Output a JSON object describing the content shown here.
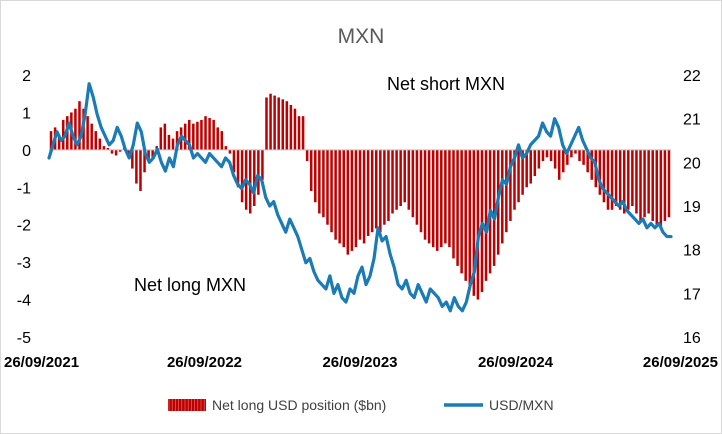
{
  "chart_data": {
    "type": "bar+line",
    "title": "MXN",
    "x_tick_labels": [
      "26/09/2021",
      "26/09/2022",
      "26/09/2023",
      "26/09/2024",
      "26/09/2025"
    ],
    "y_left": {
      "ticks": [
        "2",
        "1",
        "0",
        "-1",
        "-2",
        "-3",
        "-4",
        "-5"
      ],
      "range": [
        -5,
        2
      ]
    },
    "y_right": {
      "ticks": [
        "22",
        "21",
        "20",
        "19",
        "18",
        "17",
        "16"
      ],
      "range": [
        16,
        22
      ]
    },
    "annotations": {
      "net_short": "Net short MXN",
      "net_long": "Net long MXN"
    },
    "legend": {
      "position": "bottom",
      "bar_label": "Net long USD position ($bn)",
      "line_label": "USD/MXN"
    },
    "colors": {
      "bar": "#c00000",
      "line": "#1b7bb5"
    },
    "series": [
      {
        "name": "Net long USD position ($bn)",
        "kind": "bar",
        "x_start": "26/09/2021",
        "x_end": "26/09/2025",
        "values": [
          0.5,
          0.6,
          0.4,
          0.8,
          0.9,
          1.0,
          1.1,
          1.3,
          1.1,
          0.9,
          0.7,
          0.5,
          0.3,
          0.1,
          0.05,
          -0.1,
          -0.15,
          -0.05,
          0.05,
          -0.2,
          -0.5,
          -0.9,
          -1.1,
          -0.6,
          -0.3,
          -0.2,
          0.1,
          0.6,
          0.7,
          0.4,
          0.3,
          0.5,
          0.6,
          0.7,
          0.8,
          0.7,
          0.75,
          0.8,
          0.9,
          0.85,
          0.8,
          0.6,
          0.5,
          0.1,
          -0.1,
          -0.6,
          -1.0,
          -1.4,
          -1.6,
          -1.7,
          -1.5,
          -1.2,
          -0.8,
          1.4,
          1.5,
          1.45,
          1.4,
          1.35,
          1.3,
          1.2,
          1.1,
          0.9,
          0.9,
          -0.3,
          -1.1,
          -1.4,
          -1.7,
          -1.8,
          -2.0,
          -2.2,
          -2.4,
          -2.5,
          -2.6,
          -2.8,
          -2.7,
          -2.6,
          -2.4,
          -2.5,
          -2.3,
          -2.2,
          -2.1,
          -2.2,
          -2.0,
          -1.9,
          -1.7,
          -1.6,
          -1.5,
          -1.4,
          -1.6,
          -1.8,
          -2.0,
          -2.2,
          -2.4,
          -2.5,
          -2.6,
          -2.7,
          -2.6,
          -2.5,
          -2.6,
          -2.9,
          -3.1,
          -3.3,
          -3.5,
          -3.7,
          -3.9,
          -4.0,
          -3.8,
          -3.5,
          -3.3,
          -3.1,
          -2.8,
          -2.5,
          -2.2,
          -1.9,
          -1.6,
          -1.4,
          -1.2,
          -1.0,
          -0.9,
          -0.7,
          -0.5,
          -0.3,
          -0.2,
          -0.3,
          -0.5,
          -0.8,
          -0.6,
          -0.4,
          -0.2,
          -0.1,
          -0.3,
          -0.4,
          -0.6,
          -0.8,
          -1.0,
          -1.2,
          -1.4,
          -1.6,
          -1.6,
          -1.5,
          -1.6,
          -1.7,
          -1.6,
          -1.5,
          -1.7,
          -1.9,
          -1.8,
          -1.7,
          -1.9,
          -2.0,
          -2.1,
          -1.9,
          -1.8
        ]
      },
      {
        "name": "USD/MXN",
        "kind": "line",
        "x_start": "26/09/2021",
        "x_end": "26/09/2025",
        "values": [
          20.1,
          20.4,
          20.7,
          20.5,
          20.6,
          20.9,
          20.6,
          20.4,
          20.6,
          21.1,
          21.8,
          21.5,
          21.1,
          20.8,
          20.6,
          20.4,
          20.5,
          20.8,
          20.6,
          20.3,
          20.1,
          20.4,
          20.9,
          20.7,
          20.2,
          20.0,
          20.1,
          20.3,
          20.0,
          19.8,
          20.1,
          19.9,
          20.4,
          20.6,
          20.5,
          20.4,
          20.1,
          20.2,
          20.1,
          20.0,
          20.2,
          20.1,
          20.0,
          19.9,
          20.1,
          20.0,
          19.7,
          19.5,
          19.4,
          19.6,
          19.5,
          19.3,
          19.7,
          19.6,
          19.2,
          19.0,
          19.1,
          18.8,
          18.6,
          18.4,
          18.7,
          18.5,
          18.3,
          18.0,
          17.7,
          17.8,
          17.5,
          17.3,
          17.2,
          17.1,
          17.4,
          17.0,
          17.2,
          16.9,
          16.8,
          17.1,
          17.0,
          17.4,
          17.6,
          17.2,
          17.4,
          17.8,
          18.5,
          18.2,
          18.3,
          17.9,
          17.6,
          17.2,
          17.1,
          17.3,
          17.0,
          16.9,
          17.2,
          17.0,
          16.8,
          17.1,
          17.0,
          16.9,
          16.7,
          16.8,
          16.6,
          16.9,
          16.7,
          16.6,
          16.8,
          17.2,
          17.5,
          18.3,
          18.6,
          18.4,
          18.9,
          18.7,
          19.2,
          19.6,
          19.5,
          19.9,
          20.1,
          20.4,
          20.1,
          20.2,
          20.4,
          20.5,
          20.6,
          20.9,
          20.7,
          20.6,
          21.0,
          20.8,
          20.4,
          20.2,
          20.4,
          20.6,
          20.8,
          20.5,
          20.3,
          20.1,
          20.0,
          19.6,
          19.4,
          19.3,
          19.2,
          19.1,
          19.0,
          19.1,
          18.9,
          18.8,
          18.7,
          18.6,
          18.7,
          18.5,
          18.6,
          18.5,
          18.6,
          18.4,
          18.3,
          18.3
        ]
      }
    ]
  }
}
